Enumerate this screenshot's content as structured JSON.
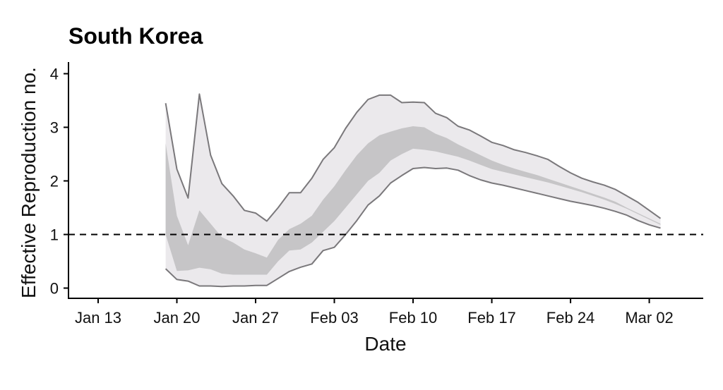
{
  "chart_data": {
    "type": "area",
    "title": "South Korea",
    "xlabel": "Date",
    "ylabel": "Effective Reproduction no.",
    "x_ticks": [
      "Jan 13",
      "Jan 20",
      "Jan 27",
      "Feb 03",
      "Feb 10",
      "Feb 17",
      "Feb 24",
      "Mar 02"
    ],
    "y_ticks": [
      "0",
      "1",
      "2",
      "3",
      "4"
    ],
    "ylim": [
      0,
      4
    ],
    "reference_line": 1,
    "grid": false,
    "dates": [
      "Jan 19",
      "Jan 20",
      "Jan 21",
      "Jan 22",
      "Jan 23",
      "Jan 24",
      "Jan 25",
      "Jan 26",
      "Jan 27",
      "Jan 28",
      "Jan 29",
      "Jan 30",
      "Jan 31",
      "Feb 01",
      "Feb 02",
      "Feb 03",
      "Feb 04",
      "Feb 05",
      "Feb 06",
      "Feb 07",
      "Feb 08",
      "Feb 09",
      "Feb 10",
      "Feb 11",
      "Feb 12",
      "Feb 13",
      "Feb 14",
      "Feb 15",
      "Feb 16",
      "Feb 17",
      "Feb 18",
      "Feb 19",
      "Feb 20",
      "Feb 21",
      "Feb 22",
      "Feb 23",
      "Feb 24",
      "Feb 25",
      "Feb 26",
      "Feb 27",
      "Feb 28",
      "Feb 29",
      "Mar 01",
      "Mar 02",
      "Mar 03"
    ],
    "series": [
      {
        "band": "outer",
        "color": "#ebe9ec",
        "outline": "#7a787b",
        "upper": [
          3.45,
          2.22,
          1.68,
          3.62,
          2.48,
          1.95,
          1.72,
          1.45,
          1.4,
          1.25,
          1.5,
          1.78,
          1.78,
          2.05,
          2.4,
          2.62,
          2.98,
          3.28,
          3.52,
          3.6,
          3.6,
          3.46,
          3.47,
          3.46,
          3.26,
          3.18,
          3.02,
          2.95,
          2.84,
          2.72,
          2.66,
          2.58,
          2.53,
          2.47,
          2.4,
          2.27,
          2.15,
          2.05,
          1.98,
          1.92,
          1.84,
          1.72,
          1.6,
          1.45,
          1.3
        ],
        "lower": [
          0.36,
          0.16,
          0.13,
          0.04,
          0.04,
          0.03,
          0.04,
          0.04,
          0.05,
          0.05,
          0.18,
          0.31,
          0.39,
          0.45,
          0.7,
          0.76,
          1.0,
          1.26,
          1.55,
          1.72,
          1.96,
          2.1,
          2.23,
          2.25,
          2.23,
          2.24,
          2.2,
          2.1,
          2.02,
          1.96,
          1.92,
          1.87,
          1.82,
          1.77,
          1.72,
          1.67,
          1.62,
          1.58,
          1.54,
          1.49,
          1.43,
          1.36,
          1.26,
          1.18,
          1.12
        ]
      },
      {
        "band": "inner",
        "color": "#c6c5c7",
        "upper": [
          2.7,
          1.35,
          0.8,
          1.45,
          1.2,
          0.95,
          0.85,
          0.72,
          0.65,
          0.57,
          0.9,
          1.1,
          1.2,
          1.35,
          1.65,
          1.9,
          2.2,
          2.48,
          2.7,
          2.85,
          2.92,
          2.98,
          3.02,
          3.0,
          2.88,
          2.8,
          2.68,
          2.58,
          2.48,
          2.38,
          2.3,
          2.23,
          2.17,
          2.11,
          2.04,
          1.97,
          1.9,
          1.83,
          1.76,
          1.69,
          1.61,
          1.5,
          1.4,
          1.3,
          1.2
        ],
        "lower": [
          1.0,
          0.32,
          0.33,
          0.38,
          0.35,
          0.27,
          0.25,
          0.25,
          0.25,
          0.25,
          0.5,
          0.7,
          0.72,
          0.85,
          1.05,
          1.25,
          1.5,
          1.75,
          2.0,
          2.15,
          2.38,
          2.5,
          2.6,
          2.58,
          2.55,
          2.5,
          2.45,
          2.38,
          2.3,
          2.22,
          2.17,
          2.12,
          2.07,
          2.02,
          1.97,
          1.91,
          1.85,
          1.79,
          1.72,
          1.65,
          1.57,
          1.48,
          1.38,
          1.28,
          1.18
        ]
      }
    ]
  }
}
